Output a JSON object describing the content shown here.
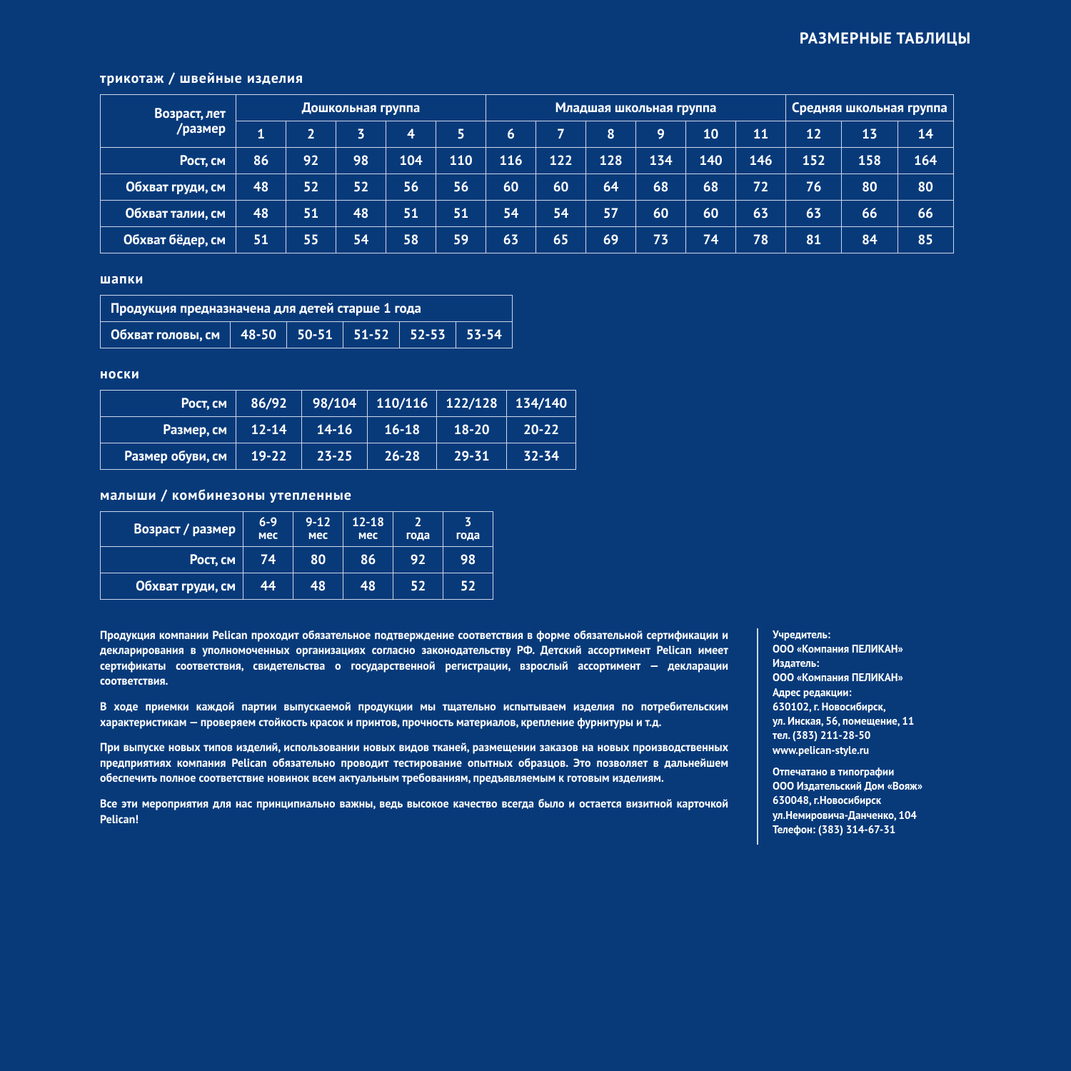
{
  "colors": {
    "background": "#083a7a",
    "border": "#cfd8ea",
    "text": "#ffffff"
  },
  "page_title": "РАЗМЕРНЫЕ ТАБЛИЦЫ",
  "section1": {
    "title": "трикотаж / швейные изделия",
    "age_header": "Возраст, лет /размер",
    "groups": [
      {
        "label": "Дошкольная группа",
        "span": 5
      },
      {
        "label": "Младшая школьная группа",
        "span": 6
      },
      {
        "label": "Средняя школьная группа",
        "span": 3
      }
    ],
    "sizes": [
      "1",
      "2",
      "3",
      "4",
      "5",
      "6",
      "7",
      "8",
      "9",
      "10",
      "11",
      "12",
      "13",
      "14"
    ],
    "rows": [
      {
        "label": "Рост, см",
        "vals": [
          "86",
          "92",
          "98",
          "104",
          "110",
          "116",
          "122",
          "128",
          "134",
          "140",
          "146",
          "152",
          "158",
          "164"
        ]
      },
      {
        "label": "Обхват груди, см",
        "vals": [
          "48",
          "52",
          "52",
          "56",
          "56",
          "60",
          "60",
          "64",
          "68",
          "68",
          "72",
          "76",
          "80",
          "80"
        ]
      },
      {
        "label": "Обхват талии, см",
        "vals": [
          "48",
          "51",
          "48",
          "51",
          "51",
          "54",
          "54",
          "57",
          "60",
          "60",
          "63",
          "63",
          "66",
          "66"
        ]
      },
      {
        "label": "Обхват бёдер, см",
        "vals": [
          "51",
          "55",
          "54",
          "58",
          "59",
          "63",
          "65",
          "69",
          "73",
          "74",
          "78",
          "81",
          "84",
          "85"
        ]
      }
    ]
  },
  "section2": {
    "title": "шапки",
    "note": "Продукция предназначена для детей старше 1 года",
    "row_label": "Обхват головы, см",
    "vals": [
      "48-50",
      "50-51",
      "51-52",
      "52-53",
      "53-54"
    ]
  },
  "section3": {
    "title": "носки",
    "rows": [
      {
        "label": "Рост, см",
        "vals": [
          "86/92",
          "98/104",
          "110/116",
          "122/128",
          "134/140"
        ]
      },
      {
        "label": "Размер, см",
        "vals": [
          "12-14",
          "14-16",
          "16-18",
          "18-20",
          "20-22"
        ]
      },
      {
        "label": "Размер обуви, см",
        "vals": [
          "19-22",
          "23-25",
          "26-28",
          "29-31",
          "32-34"
        ]
      }
    ]
  },
  "section4": {
    "title": "малыши / Комбинезоны утепленные",
    "age_header": "Возраст / размер",
    "sizes": [
      [
        "6-9",
        "мес"
      ],
      [
        "9-12",
        "мес"
      ],
      [
        "12-18",
        "мес"
      ],
      [
        "2",
        "года"
      ],
      [
        "3",
        "года"
      ]
    ],
    "rows": [
      {
        "label": "Рост, см",
        "vals": [
          "74",
          "80",
          "86",
          "92",
          "98"
        ]
      },
      {
        "label": "Обхват груди, см",
        "vals": [
          "44",
          "48",
          "48",
          "52",
          "52"
        ]
      }
    ]
  },
  "footer_left": [
    "Продукция компании Pelican проходит обязательное подтверждение соответствия в форме обязательной сертификации и декларирования в уполномоченных организациях согласно законодательству РФ. Детский ассортимент Pelican имеет сертификаты соответствия, свидетельства о государственной регистрации, взрослый ассортимент — декларации соответствия.",
    "В ходе приемки каждой партии выпускаемой продукции мы тщательно испытываем изделия по потребительским характеристикам — проверяем стойкость красок и принтов, прочность материалов, крепление фурнитуры и т.д.",
    "При выпуске новых типов изделий, использовании новых видов тканей, размещении заказов на новых производственных предприятиях компания Pelican обязательно проводит тестирование опытных образцов. Это позволяет в дальнейшем обеспечить полное соответствие новинок всем актуальным требованиям, предъявляемым к готовым изделиям.",
    "Все эти мероприятия для нас принципиально важны, ведь высокое качество всегда было и остается визитной карточкой Pelican!"
  ],
  "footer_right": [
    "Учредитель:\nООО «Компания ПЕЛИКАН»\nИздатель:\nООО «Компания ПЕЛИКАН»\nАдрес редакции:\n630102, г. Новосибирск,\nул. Инская, 56, помещение, 11\nтел. (383) 211-28-50\nwww.pelican-style.ru",
    "Отпечатано в типографии\nООО Издательский Дом «Вояж»\n630048, г.Новосибирск\nул.Немировича-Данченко, 104\nТелефон: (383) 314-67-31"
  ]
}
